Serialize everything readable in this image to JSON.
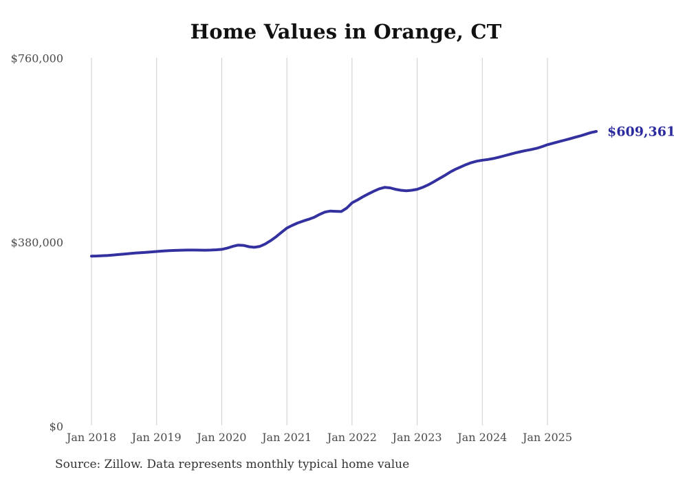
{
  "page": {
    "title": "Home Values in Orange, CT"
  },
  "footer": {
    "source": "Source: Zillow. Data represents monthly typical home value"
  },
  "chart_data": {
    "type": "line",
    "title": "Home Values in Orange, CT",
    "x_unit": "month",
    "x_start": "2018-01",
    "x_end": "2025-10",
    "x_tick_labels": [
      "Jan 2018",
      "Jan 2019",
      "Jan 2020",
      "Jan 2021",
      "Jan 2022",
      "Jan 2023",
      "Jan 2024",
      "Jan 2025"
    ],
    "x_tick_month_indices": [
      0,
      12,
      24,
      36,
      48,
      60,
      72,
      84
    ],
    "y_ticks": [
      {
        "value": 0,
        "label": "$0"
      },
      {
        "value": 380000,
        "label": "$380,000"
      },
      {
        "value": 760000,
        "label": "$760,000"
      }
    ],
    "ylim": [
      0,
      760000
    ],
    "grid": "vertical-only",
    "legend": "none",
    "end_label": "$609,361",
    "end_value": 609361,
    "series": [
      {
        "name": "Monthly typical home value",
        "color": "#33309f",
        "values": [
          352000,
          352300,
          352800,
          353500,
          354300,
          355300,
          356300,
          357300,
          358200,
          359000,
          359800,
          360700,
          361600,
          362400,
          363100,
          363700,
          364100,
          364400,
          364500,
          364500,
          364400,
          364300,
          364500,
          365100,
          366000,
          368500,
          372000,
          374800,
          374200,
          371500,
          370200,
          372000,
          377000,
          384000,
          392000,
          401000,
          410000,
          415500,
          420500,
          424500,
          428000,
          432000,
          438000,
          443000,
          445000,
          444500,
          444000,
          451000,
          462000,
          468000,
          474500,
          480500,
          486000,
          491000,
          494000,
          493000,
          490000,
          488000,
          487000,
          488000,
          490000,
          494000,
          499000,
          505000,
          511500,
          518000,
          525000,
          531000,
          536000,
          541000,
          545000,
          548000,
          550000,
          551500,
          553500,
          556000,
          559000,
          562000,
          565000,
          567500,
          570000,
          572000,
          574500,
          578000,
          582000,
          585000,
          588000,
          591000,
          594000,
          597000,
          600000,
          603500,
          607000,
          609361
        ]
      }
    ],
    "colors": {
      "line": "#33309f",
      "end_label": "#2b2a9e",
      "grid": "#cccccc",
      "axis_text": "#4a4a4a",
      "title_text": "#111111",
      "source_text": "#333333"
    }
  }
}
